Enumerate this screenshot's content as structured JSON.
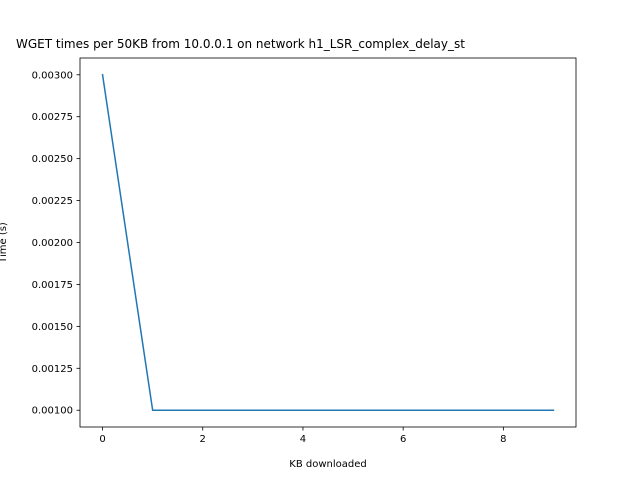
{
  "chart_data": {
    "type": "line",
    "title": "WGET times per 50KB from 10.0.0.1 on network h1_LSR_complex_delay_st",
    "xlabel": "KB downloaded",
    "ylabel": "Time (s)",
    "xlim": [
      -0.45,
      9.45
    ],
    "ylim": [
      0.0009,
      0.0031
    ],
    "x_ticks": [
      0,
      2,
      4,
      6,
      8
    ],
    "x_tick_labels": [
      "0",
      "2",
      "4",
      "6",
      "8"
    ],
    "y_ticks": [
      0.001,
      0.00125,
      0.0015,
      0.00175,
      0.002,
      0.00225,
      0.0025,
      0.00275,
      0.003
    ],
    "y_tick_labels": [
      "0.00100",
      "0.00125",
      "0.00150",
      "0.00175",
      "0.00200",
      "0.00225",
      "0.00250",
      "0.00275",
      "0.00300"
    ],
    "grid": false,
    "series": [
      {
        "color": "#1f77b4",
        "x": [
          0,
          1,
          2,
          3,
          4,
          5,
          6,
          7,
          8,
          9
        ],
        "y": [
          0.003,
          0.001,
          0.001,
          0.001,
          0.001,
          0.001,
          0.001,
          0.001,
          0.001,
          0.001
        ]
      }
    ]
  }
}
